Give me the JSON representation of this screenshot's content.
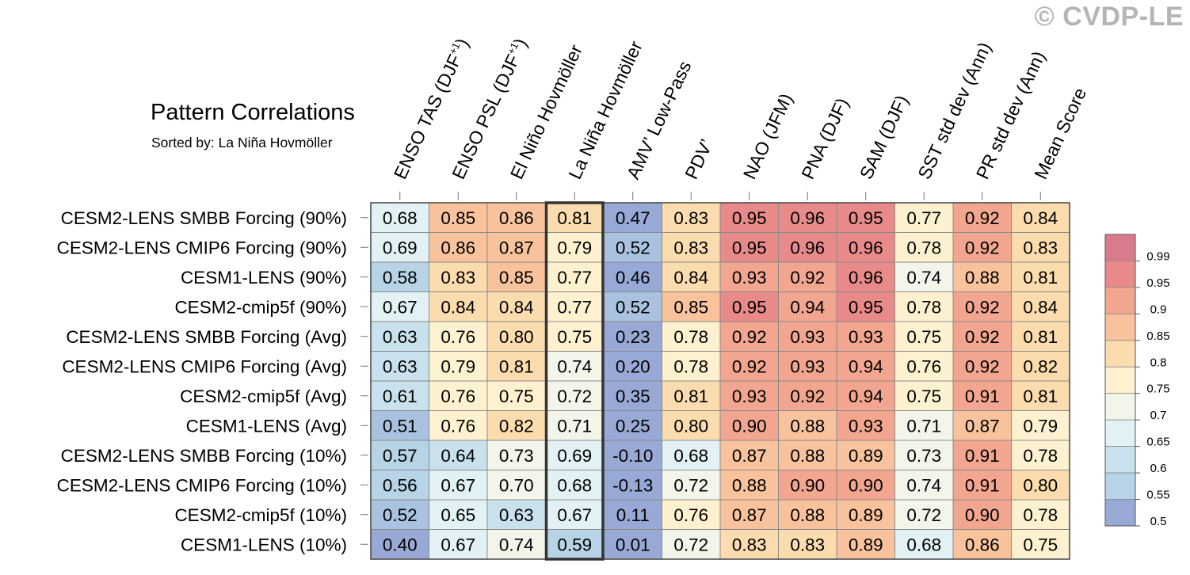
{
  "watermark": "© CVDP-LE",
  "chart_data": {
    "type": "heatmap",
    "title": "Pattern Correlations",
    "subtitle": "Sorted by: La Niña Hovmöller",
    "highlighted_column": "La Niña Hovmöller",
    "columns": [
      {
        "pre": "ENSO TAS (DJF",
        "sup": "+1",
        "post": ")"
      },
      {
        "pre": "ENSO PSL (DJF",
        "sup": "+1",
        "post": ")"
      },
      {
        "pre": "El Niño Hovmöller",
        "sup": "",
        "post": ""
      },
      {
        "pre": "La Niña Hovmöller",
        "sup": "",
        "post": ""
      },
      {
        "pre": "AMV’ Low-Pass",
        "sup": "",
        "post": ""
      },
      {
        "pre": "PDV’",
        "sup": "",
        "post": ""
      },
      {
        "pre": "NAO (JFM)",
        "sup": "",
        "post": ""
      },
      {
        "pre": "PNA (DJF)",
        "sup": "",
        "post": ""
      },
      {
        "pre": "SAM (DJF)",
        "sup": "",
        "post": ""
      },
      {
        "pre": "SST std dev (Ann)",
        "sup": "",
        "post": ""
      },
      {
        "pre": "PR std dev (Ann)",
        "sup": "",
        "post": ""
      },
      {
        "pre": "Mean Score",
        "sup": "",
        "post": ""
      }
    ],
    "rows": [
      "CESM2-LENS SMBB Forcing (90%)",
      "CESM2-LENS CMIP6 Forcing (90%)",
      "CESM1-LENS (90%)",
      "CESM2-cmip5f (90%)",
      "CESM2-LENS SMBB Forcing (Avg)",
      "CESM2-LENS CMIP6 Forcing (Avg)",
      "CESM2-cmip5f (Avg)",
      "CESM1-LENS (Avg)",
      "CESM2-LENS SMBB Forcing (10%)",
      "CESM2-LENS CMIP6 Forcing (10%)",
      "CESM2-cmip5f (10%)",
      "CESM1-LENS (10%)"
    ],
    "values": [
      [
        "0.68",
        "0.85",
        "0.86",
        "0.81",
        "0.47",
        "0.83",
        "0.95",
        "0.96",
        "0.95",
        "0.77",
        "0.92",
        "0.84"
      ],
      [
        "0.69",
        "0.86",
        "0.87",
        "0.79",
        "0.52",
        "0.83",
        "0.95",
        "0.96",
        "0.96",
        "0.78",
        "0.92",
        "0.83"
      ],
      [
        "0.58",
        "0.83",
        "0.85",
        "0.77",
        "0.46",
        "0.84",
        "0.93",
        "0.92",
        "0.96",
        "0.74",
        "0.88",
        "0.81"
      ],
      [
        "0.67",
        "0.84",
        "0.84",
        "0.77",
        "0.52",
        "0.85",
        "0.95",
        "0.94",
        "0.95",
        "0.78",
        "0.92",
        "0.84"
      ],
      [
        "0.63",
        "0.76",
        "0.80",
        "0.75",
        "0.23",
        "0.78",
        "0.92",
        "0.93",
        "0.93",
        "0.75",
        "0.92",
        "0.81"
      ],
      [
        "0.63",
        "0.79",
        "0.81",
        "0.74",
        "0.20",
        "0.78",
        "0.92",
        "0.93",
        "0.94",
        "0.76",
        "0.92",
        "0.82"
      ],
      [
        "0.61",
        "0.76",
        "0.75",
        "0.72",
        "0.35",
        "0.81",
        "0.93",
        "0.92",
        "0.94",
        "0.75",
        "0.91",
        "0.81"
      ],
      [
        "0.51",
        "0.76",
        "0.82",
        "0.71",
        "0.25",
        "0.80",
        "0.90",
        "0.88",
        "0.93",
        "0.71",
        "0.87",
        "0.79"
      ],
      [
        "0.57",
        "0.64",
        "0.73",
        "0.69",
        "-0.10",
        "0.68",
        "0.87",
        "0.88",
        "0.89",
        "0.73",
        "0.91",
        "0.78"
      ],
      [
        "0.56",
        "0.67",
        "0.70",
        "0.68",
        "-0.13",
        "0.72",
        "0.88",
        "0.90",
        "0.90",
        "0.74",
        "0.91",
        "0.80"
      ],
      [
        "0.52",
        "0.65",
        "0.63",
        "0.67",
        "0.11",
        "0.76",
        "0.87",
        "0.88",
        "0.89",
        "0.72",
        "0.90",
        "0.78"
      ],
      [
        "0.40",
        "0.67",
        "0.74",
        "0.59",
        "0.01",
        "0.72",
        "0.83",
        "0.83",
        "0.89",
        "0.68",
        "0.86",
        "0.75"
      ]
    ],
    "colorbar": {
      "ticks": [
        "0.99",
        "0.95",
        "0.9",
        "0.85",
        "0.8",
        "0.75",
        "0.7",
        "0.65",
        "0.6",
        "0.55",
        "0.5"
      ],
      "colors": [
        "#d97b8d",
        "#e88a8a",
        "#f2a58f",
        "#f8c39c",
        "#fbdcae",
        "#fdf1cf",
        "#f3f5ea",
        "#e2f1f4",
        "#c8e1ec",
        "#b7d3e6",
        "#98a9d6"
      ],
      "bins": [
        {
          "min": 0.99,
          "color": "#d97b8d"
        },
        {
          "min": 0.95,
          "color": "#e88a8a"
        },
        {
          "min": 0.9,
          "color": "#f2a58f"
        },
        {
          "min": 0.85,
          "color": "#f8c39c"
        },
        {
          "min": 0.8,
          "color": "#fbdcae"
        },
        {
          "min": 0.75,
          "color": "#fdf1cf"
        },
        {
          "min": 0.7,
          "color": "#f3f5ea"
        },
        {
          "min": 0.65,
          "color": "#e2f1f4"
        },
        {
          "min": 0.6,
          "color": "#c8e1ec"
        },
        {
          "min": 0.55,
          "color": "#b7d3e6"
        },
        {
          "min": 0.5,
          "color": "#a9c2e0"
        },
        {
          "min": -1,
          "color": "#98a9d6"
        }
      ]
    },
    "grid_line_color": "#8a8a8a",
    "highlight_border_color": "#333333"
  }
}
